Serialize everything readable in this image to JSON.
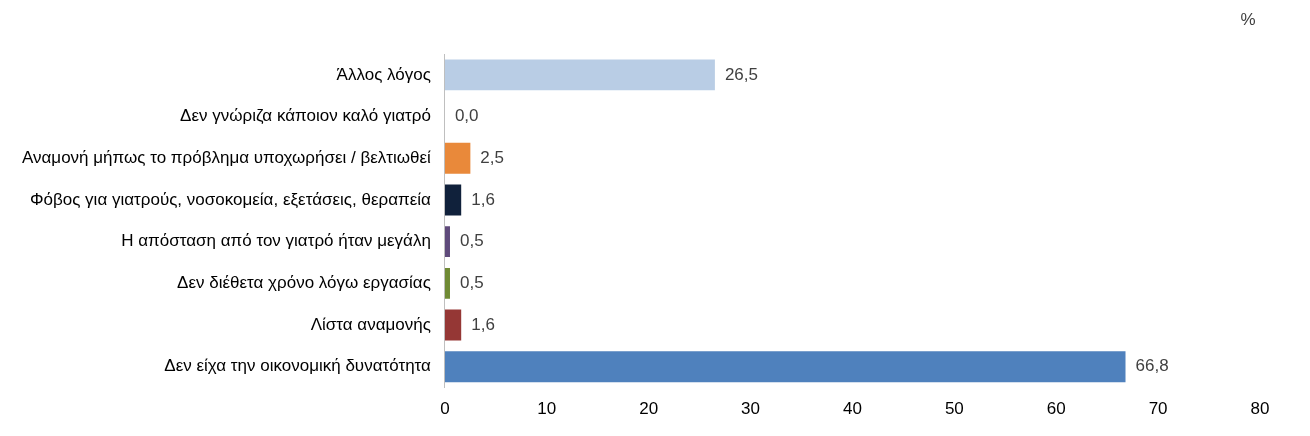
{
  "chart_data": {
    "type": "bar",
    "orientation": "horizontal",
    "categories": [
      "Άλλος λόγος",
      "Δεν γνώριζα κάποιον καλό γιατρό",
      "Αναμονή μήπως το πρόβλημα υποχωρήσει / βελτιωθεί",
      "Φόβος για γιατρούς, νοσοκομεία, εξετάσεις, θεραπεία",
      "Η απόσταση από τον γιατρό ήταν μεγάλη",
      "Δεν διέθετα χρόνο λόγω εργασίας",
      "Λίστα αναμονής",
      "Δεν είχα την οικονομική δυνατότητα"
    ],
    "values": [
      26.5,
      0.0,
      2.5,
      1.6,
      0.5,
      0.5,
      1.6,
      66.8
    ],
    "value_labels": [
      "26,5",
      "0,0",
      "2,5",
      "1,6",
      "0,5",
      "0,5",
      "1,6",
      "66,8"
    ],
    "colors": [
      "#b9cde5",
      "#9bbb59",
      "#e9893a",
      "#10213b",
      "#5f4a7b",
      "#6f8a34",
      "#953735",
      "#4f81bd"
    ],
    "xlim": [
      0,
      80
    ],
    "xticks": [
      0,
      10,
      20,
      30,
      40,
      50,
      60,
      70,
      80
    ],
    "annotations": [
      "%"
    ],
    "grid": false,
    "legend": false
  }
}
